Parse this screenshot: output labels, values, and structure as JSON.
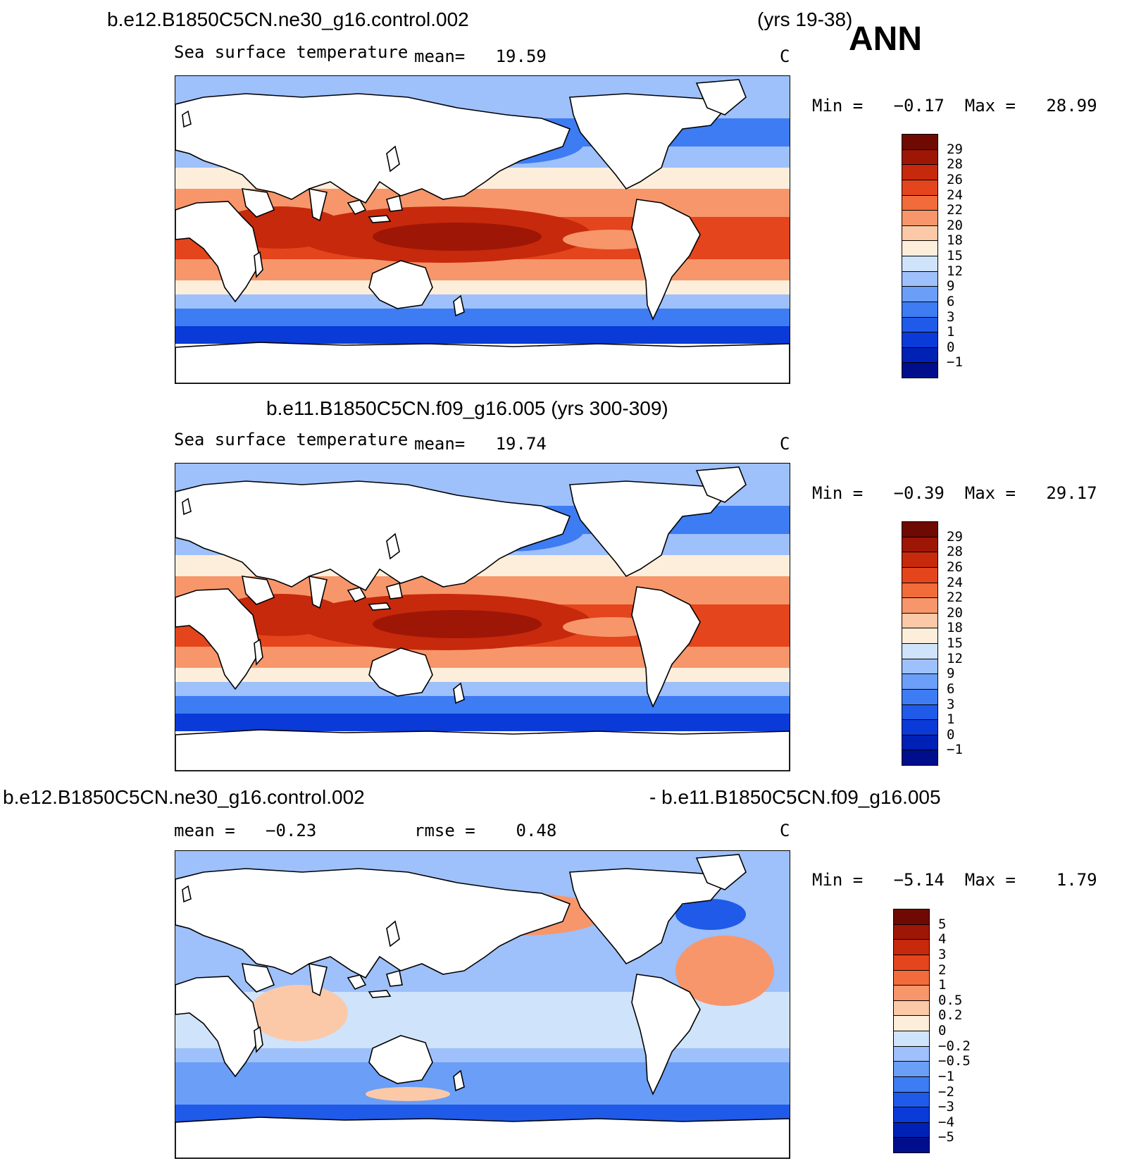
{
  "header": {
    "ann_label": "ANN"
  },
  "panels": [
    {
      "title_left": "b.e12.B1850C5CN.ne30_g16.control.002",
      "title_right": "(yrs 19-38)",
      "variable": "Sea surface temperature",
      "stat_text": "mean=   19.59",
      "units": "C",
      "minmax": "Min =   −0.17  Max =   28.99",
      "colorbar": {
        "colors": [
          "#000e8c",
          "#0021b5",
          "#0a3ad8",
          "#1f5ae8",
          "#3d7cf2",
          "#6a9ef7",
          "#9ec0fb",
          "#cfe3fb",
          "#fdeedb",
          "#fbc9a8",
          "#f7966a",
          "#f26b3b",
          "#e4451c",
          "#c7290c",
          "#9e1606",
          "#6e0a02"
        ],
        "ticks": [
          "−1",
          "0",
          "1",
          "3",
          "6",
          "9",
          "12",
          "15",
          "18",
          "20",
          "22",
          "24",
          "26",
          "28",
          "29"
        ]
      }
    },
    {
      "title_left": "b.e11.B1850C5CN.f09_g16.005 (yrs 300-309)",
      "title_right": "",
      "variable": "Sea surface temperature",
      "stat_text": "mean=   19.74",
      "units": "C",
      "minmax": "Min =   −0.39  Max =   29.17",
      "colorbar": {
        "colors": [
          "#000e8c",
          "#0021b5",
          "#0a3ad8",
          "#1f5ae8",
          "#3d7cf2",
          "#6a9ef7",
          "#9ec0fb",
          "#cfe3fb",
          "#fdeedb",
          "#fbc9a8",
          "#f7966a",
          "#f26b3b",
          "#e4451c",
          "#c7290c",
          "#9e1606",
          "#6e0a02"
        ],
        "ticks": [
          "−1",
          "0",
          "1",
          "3",
          "6",
          "9",
          "12",
          "15",
          "18",
          "20",
          "22",
          "24",
          "26",
          "28",
          "29"
        ]
      }
    },
    {
      "title_left": "b.e12.B1850C5CN.ne30_g16.control.002",
      "title_right": "- b.e11.B1850C5CN.f09_g16.005",
      "variable": "",
      "stat_text": "mean =   −0.23",
      "rmse_text": "rmse =    0.48",
      "units": "C",
      "minmax": "Min =   −5.14  Max =    1.79",
      "colorbar": {
        "colors": [
          "#000e8c",
          "#0021b5",
          "#0a3ad8",
          "#1f5ae8",
          "#3d7cf2",
          "#6a9ef7",
          "#9ec0fb",
          "#cfe3fb",
          "#fdeedb",
          "#fbc9a8",
          "#f7966a",
          "#f26b3b",
          "#e4451c",
          "#c7290c",
          "#9e1606",
          "#6e0a02"
        ],
        "ticks": [
          "−5",
          "−4",
          "−3",
          "−2",
          "−1",
          "−0.5",
          "−0.2",
          "0",
          "0.2",
          "0.5",
          "1",
          "2",
          "3",
          "4",
          "5"
        ]
      }
    }
  ],
  "map_style": {
    "land": "#ffffff",
    "coast": "#000000",
    "sst_colors": [
      "#0a3ad8",
      "#3d7cf2",
      "#9ec0fb",
      "#fdeedb",
      "#f7966a",
      "#e4451c",
      "#c7290c",
      "#9e1606"
    ],
    "diff_colors": [
      "#1f5ae8",
      "#6a9ef7",
      "#9ec0fb",
      "#cfe3fb",
      "#fbc9a8",
      "#f7966a"
    ]
  }
}
